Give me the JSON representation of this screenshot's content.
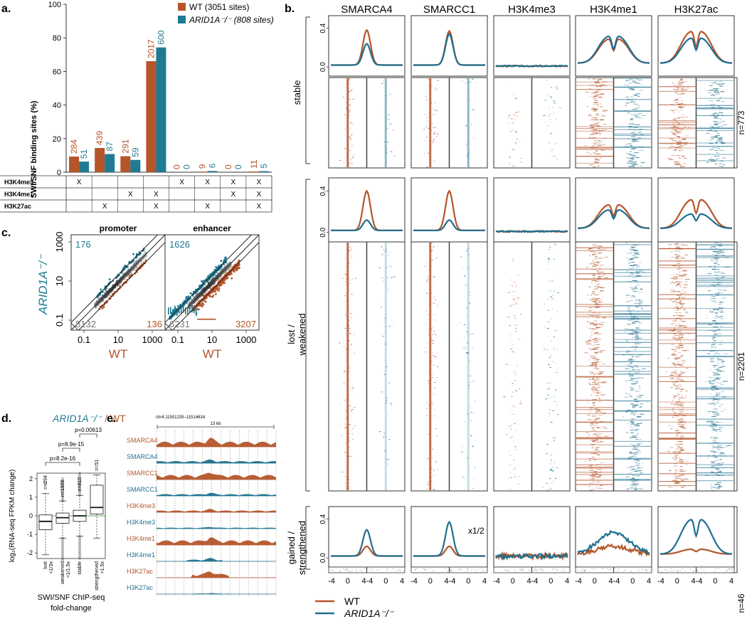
{
  "panels": {
    "a": {
      "letter": "a.",
      "ylabel": "SWI/SNF binding sites (%)",
      "legend": [
        {
          "label": "WT (3051 sites)",
          "color": "#b5552a"
        },
        {
          "label": "ARID1A⁻/⁻ (808 sites)",
          "color": "#1f7a94"
        }
      ],
      "marks": [
        "H3K4me3",
        "H3K4me1",
        "H3K27ac"
      ],
      "mark_symbol": "X"
    },
    "b": {
      "letter": "b.",
      "columns": [
        "SMARCA4",
        "SMARCC1",
        "H3K4me3",
        "H3K4me1",
        "H3K27ac"
      ],
      "rows": [
        {
          "label": "stable",
          "n": "n=773"
        },
        {
          "label": "lost /\nweakened",
          "n": "n=2201"
        },
        {
          "label": "gained /\nstrengthened",
          "n": "n=46"
        }
      ],
      "yticks": [
        "0.0",
        "0.4"
      ],
      "xticks": [
        "-4",
        "0",
        "4"
      ],
      "scale_note": "x1/2",
      "legend": [
        {
          "label": "WT",
          "color": "#b5552a"
        },
        {
          "label": "ARID1A⁻/⁻",
          "color": "#1f6f8f"
        }
      ]
    },
    "c": {
      "letter": "c.",
      "titles": [
        "promoter",
        "enhancer"
      ],
      "xlabel": "WT",
      "ylabel": "ARID1A⁻/⁻",
      "xticks": [
        "0.1",
        "10",
        "1000"
      ],
      "yticks": [
        "1000",
        "10",
        "0.1"
      ],
      "counts": {
        "promoter": {
          "up": "176",
          "none": "8132",
          "down": "136"
        },
        "enhancer": {
          "up": "1626",
          "none": "6231",
          "down": "3207"
        }
      }
    },
    "d": {
      "letter": "d.",
      "title_a": "ARID1A⁻/⁻",
      "title_b": " / WT",
      "ylabel": "log₂(RNA-seq FPKM change)",
      "xlabel_1": "SWI/SNF ChIP-seq",
      "xlabel_2": "fold-change",
      "pvalues": [
        "p=0.00613",
        "p=8.9e-15",
        "p=8.2e-16"
      ],
      "yticks": [
        "2",
        "1",
        "0",
        "-1",
        "-2"
      ],
      "categories": [
        {
          "name": "lost\n<1/3x",
          "n": "n=294"
        },
        {
          "name": "weakened\n<1/1.5x",
          "n": "n=1900"
        },
        {
          "name": "stable",
          "n": "n=810"
        },
        {
          "name": "strengthened\n>1.5x",
          "n": "n=51"
        }
      ]
    },
    "e": {
      "letter": "e.",
      "locus": "chr4:11501235–11514634",
      "scale": "13 kb",
      "tracks": [
        {
          "label": "SMARCA4",
          "color": "#b5552a"
        },
        {
          "label": "SMARCA4",
          "color": "#1f6f8f"
        },
        {
          "label": "SMARCC1",
          "color": "#b5552a"
        },
        {
          "label": "SMARCC1",
          "color": "#1f6f8f"
        },
        {
          "label": "H3K4me3",
          "color": "#b5552a"
        },
        {
          "label": "H3K4me3",
          "color": "#1f6f8f"
        },
        {
          "label": "H3K4me1",
          "color": "#b5552a"
        },
        {
          "label": "H3K4me1",
          "color": "#1f6f8f"
        },
        {
          "label": "H3K27ac",
          "color": "#b5552a"
        },
        {
          "label": "H3K27ac",
          "color": "#1f6f8f"
        }
      ]
    }
  },
  "colors": {
    "wt": "#b5552a",
    "ko": "#1f7a94",
    "ko_dark": "#1f6f8f"
  },
  "chart_data": [
    {
      "type": "bar",
      "panel": "a",
      "title": "",
      "ylabel": "SWI/SNF binding sites (%)",
      "ylim": [
        0,
        100
      ],
      "yticks": [
        0,
        20,
        40,
        60,
        80,
        100
      ],
      "categories": [
        "H3K4me3",
        "H3K27ac",
        "H3K4me1",
        "H3K4me1+H3K27ac",
        "H3K4me3 only",
        "H3K4me3+H3K27ac",
        "H3K4me3+H3K4me1",
        "H3K4me3+H3K4me1+H3K27ac"
      ],
      "category_marks": [
        [
          true,
          false,
          false
        ],
        [
          false,
          false,
          true
        ],
        [
          false,
          true,
          false
        ],
        [
          false,
          true,
          true
        ],
        [
          true,
          false,
          false
        ],
        [
          true,
          false,
          true
        ],
        [
          true,
          true,
          false
        ],
        [
          true,
          true,
          true
        ]
      ],
      "series": [
        {
          "name": "WT (3051 sites)",
          "values": [
            9.3,
            14.4,
            9.5,
            66.1,
            0.0,
            0.3,
            0.0,
            0.4
          ],
          "labels": [
            "284",
            "439",
            "291",
            "2017",
            "0",
            "9",
            "0",
            "11"
          ]
        },
        {
          "name": "ARID1A-/- (808 sites)",
          "values": [
            6.3,
            10.8,
            7.3,
            74.3,
            0.0,
            0.7,
            0.0,
            0.6
          ],
          "labels": [
            "51",
            "87",
            "59",
            "600",
            "0",
            "6",
            "0",
            "5"
          ]
        }
      ]
    },
    {
      "type": "box",
      "panel": "d",
      "ylabel": "log2(RNA-seq FPKM change)",
      "ylim": [
        -2.3,
        2.3
      ],
      "categories": [
        "lost <1/3x",
        "weakened <1/1.5x",
        "stable",
        "strengthened >1.5x"
      ],
      "boxes": [
        {
          "min": -2.1,
          "q1": -0.75,
          "median": -0.3,
          "q3": 0.05,
          "max": 1.2
        },
        {
          "min": -1.2,
          "q1": -0.4,
          "median": -0.1,
          "q3": 0.15,
          "max": 0.8
        },
        {
          "min": -1.1,
          "q1": -0.3,
          "median": 0.0,
          "q3": 0.3,
          "max": 1.1
        },
        {
          "min": -1.2,
          "q1": 0.1,
          "median": 0.45,
          "q3": 1.65,
          "max": 2.2
        }
      ]
    }
  ]
}
